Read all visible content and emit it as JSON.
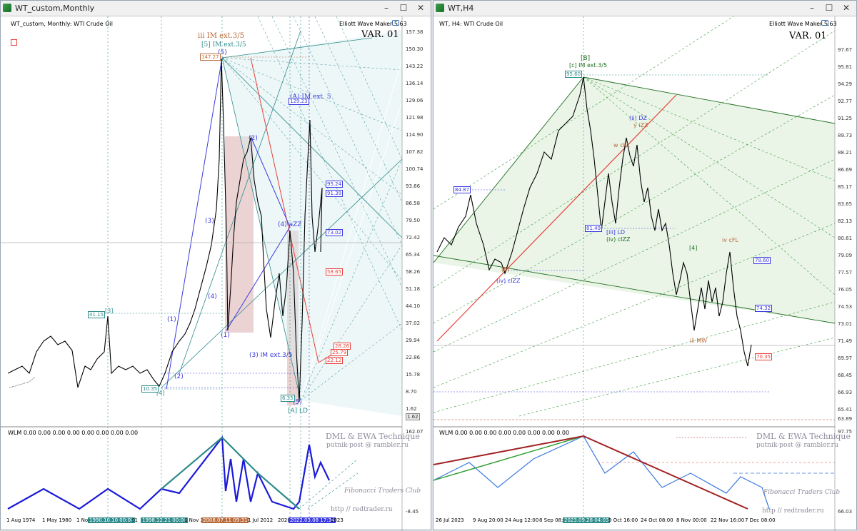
{
  "left": {
    "title": "WT_custom,Monthly",
    "info": "WT_custom, Monthly:  WTI Crude Oil",
    "indicator": "Elliott Wave Maker 5.63",
    "variant": "VAR. 01",
    "wlm": "WLM 0.00 0.00 0.00 0.00 0.00 0.00 0.00 0.00",
    "watermark1": "DML & EWA Technique",
    "watermark2": "putnik-post @ rambler.ru",
    "watermark3": "Fibonacci   Traders   Club",
    "watermark4": "http  //  redtrader.ru",
    "prices": [
      "157.38",
      "150.30",
      "143.22",
      "136.14",
      "129.06",
      "121.98",
      "114.90",
      "107.82",
      "100.74",
      "93.66",
      "86.58",
      "79.50",
      "72.42",
      "65.34",
      "58.26",
      "51.18",
      "44.10",
      "37.02",
      "29.94",
      "22.86",
      "15.78",
      "8.70",
      "1.62"
    ],
    "osc_prices": [
      "162.07",
      "-8.45"
    ],
    "times": [
      "1 Aug 1974",
      "1 May 1980",
      "1 No",
      "1990.10.10 00:00",
      "91",
      "1998.12.21 00:00",
      "1 Nov 200",
      "2008.07.11 09:31",
      "1 Jul 2012",
      "2020",
      "2022.03.08 17:34",
      "2023"
    ],
    "waves": [
      "iii IM ext.3/5",
      "[5] IM ext.3/5",
      "(5)",
      "(A) IM ext. 5",
      "(2)",
      "(3)",
      "(4) aZZ",
      "(4)",
      "(1)",
      "(2)",
      "(3) IM ext.3/5",
      "(5)",
      "[A] LD",
      "[3]",
      "[4]",
      "(1)"
    ],
    "tags": [
      "147.27",
      "41.15",
      "10.35",
      "6.35",
      "129.23",
      "95.24",
      "91.39",
      "73.02",
      "58.65",
      "28.26",
      "25.79",
      "22.12",
      "1.62"
    ]
  },
  "right": {
    "title": "WT,H4",
    "info": "WT, H4:  WTI Crude Oil",
    "indicator": "Elliott Wave Maker 5.63",
    "variant": "VAR. 01",
    "wlm": "WLM 0.00 0.00 0.00 0.00 0.00 0.00 0.00 0.00",
    "watermark1": "DML & EWA Technique",
    "watermark2": "putnik-post @ rambler.ru",
    "watermark3": "Fibonacci   Traders   Club",
    "watermark4": "http  //  redtrader.ru",
    "prices": [
      "97.67",
      "95.81",
      "94.29",
      "92.77",
      "91.25",
      "89.73",
      "88.21",
      "86.69",
      "85.17",
      "83.65",
      "82.13",
      "80.61",
      "79.09",
      "77.57",
      "76.05",
      "74.53",
      "73.01",
      "71.49",
      "69.97",
      "68.45",
      "66.93",
      "65.41",
      "63.89"
    ],
    "osc_prices": [
      "97.75",
      "66.03"
    ],
    "times": [
      "26 Jul 2023",
      "9 Aug 20:00",
      "24 Aug 12:00",
      "8 Sep 08:00",
      "2023.09.28 04:03",
      "9 Oct 16:00",
      "24 Oct 08:00",
      "8 Nov 00:00",
      "22 Nov 16:00",
      "7 Dec 08:00"
    ],
    "waves": [
      "[B]",
      "[c] IM ext.3/5",
      "(ii) DZ",
      "y iZZ",
      "w cFL",
      "(iv) cIZZ",
      "[iii] LD",
      "(iv) cIZZ",
      "iv cFL",
      "iii MW",
      "(b)",
      "[4]"
    ],
    "tags": [
      "95.60",
      "84.87",
      "81.49",
      "78.60",
      "74.32",
      "70.35"
    ]
  }
}
